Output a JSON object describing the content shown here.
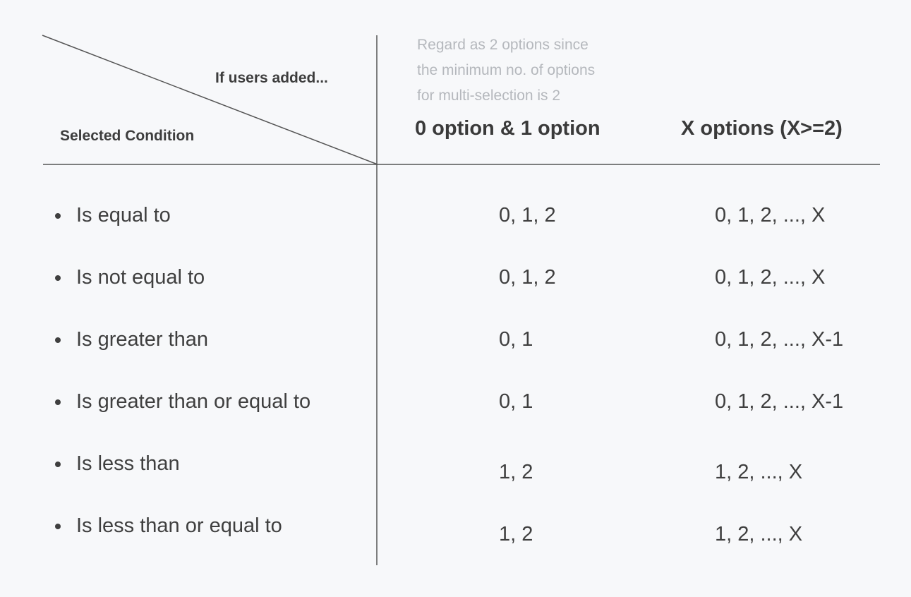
{
  "header": {
    "corner_top_label": "If users added...",
    "corner_bottom_label": "Selected Condition",
    "note_lines": [
      "Regard as 2 options since",
      "the minimum no. of options",
      "for multi-selection is 2"
    ],
    "col1_title": "0 option & 1 option",
    "col2_title": "X options (X>=2)"
  },
  "rows": [
    {
      "condition": "Is equal to",
      "col1": "0, 1, 2",
      "col2": "0, 1, 2, ..., X"
    },
    {
      "condition": "Is not equal to",
      "col1": "0, 1, 2",
      "col2": "0, 1, 2, ..., X"
    },
    {
      "condition": "Is greater than",
      "col1": "0, 1",
      "col2": "0, 1, 2, ..., X-1"
    },
    {
      "condition": "Is greater than or equal to",
      "col1": "0, 1",
      "col2": "0, 1, 2, ..., X-1"
    },
    {
      "condition": "Is less than",
      "col1": "1, 2",
      "col2": "1, 2, ..., X"
    },
    {
      "condition": "Is less than or equal to",
      "col1": "1, 2",
      "col2": "1, 2, ..., X"
    }
  ]
}
